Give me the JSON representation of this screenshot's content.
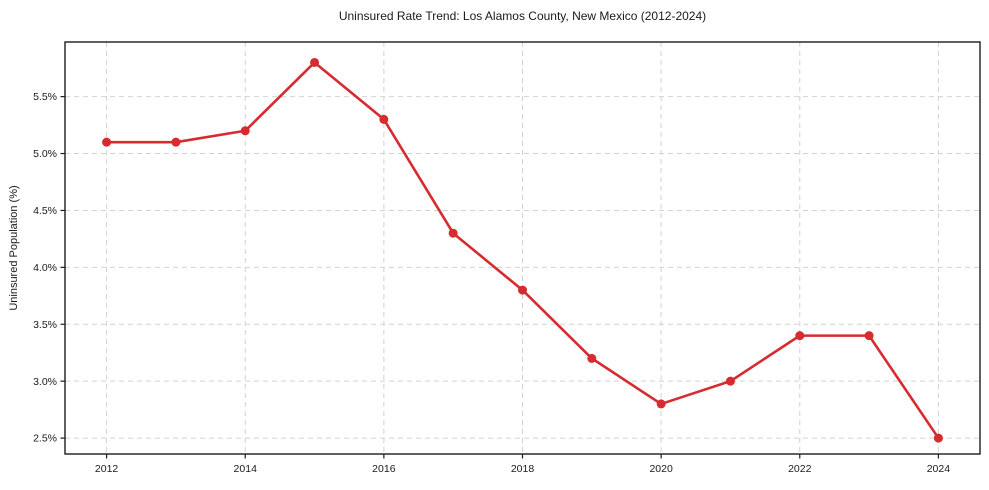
{
  "chart_data": {
    "type": "line",
    "title": "Uninsured Rate Trend: Los Alamos County, New Mexico (2012-2024)",
    "xlabel": "",
    "ylabel": "Uninsured Population (%)",
    "x": [
      2012,
      2013,
      2014,
      2015,
      2016,
      2017,
      2018,
      2019,
      2020,
      2021,
      2022,
      2023,
      2024
    ],
    "values": [
      5.1,
      5.1,
      5.2,
      5.8,
      5.3,
      4.3,
      3.8,
      3.2,
      2.8,
      3.0,
      3.4,
      3.4,
      2.5
    ],
    "xticks": [
      2012,
      2014,
      2016,
      2018,
      2020,
      2022,
      2024
    ],
    "yticks": [
      2.5,
      3.0,
      3.5,
      4.0,
      4.5,
      5.0,
      5.5
    ],
    "ytick_suffix": "%",
    "xlim": [
      2011.4,
      2024.6
    ],
    "ylim": [
      2.36,
      5.98
    ],
    "grid": true,
    "legend": false,
    "marker_radius": 4.5,
    "colors": {
      "line": "#d62b2f",
      "marker": "#d62b2f",
      "grid": "#d2d2d2",
      "spine": "#1c1c1c",
      "text": "#1a1a1a",
      "background": "#ffffff"
    }
  }
}
